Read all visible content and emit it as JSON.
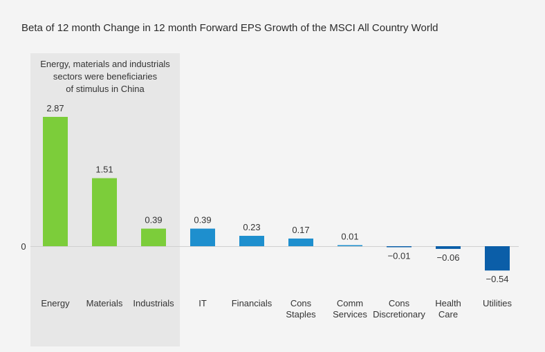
{
  "chart_data": {
    "type": "bar",
    "title": "Beta of 12 month Change in 12 month Forward EPS Growth of the MSCI All Country World",
    "xlabel": "",
    "ylabel": "",
    "ylim": [
      -0.54,
      2.87
    ],
    "zero_label": "0",
    "grid": false,
    "categories": [
      [
        "Energy"
      ],
      [
        "Materials"
      ],
      [
        "Industrials"
      ],
      [
        "IT"
      ],
      [
        "Financials"
      ],
      [
        "Cons",
        "Staples"
      ],
      [
        "Comm",
        "Services"
      ],
      [
        "Cons",
        "Discretionary"
      ],
      [
        "Health",
        "Care"
      ],
      [
        "Utilities"
      ]
    ],
    "values": [
      2.87,
      1.51,
      0.39,
      0.39,
      0.23,
      0.17,
      0.01,
      -0.01,
      -0.06,
      -0.54
    ],
    "value_labels": [
      "2.87",
      "1.51",
      "0.39",
      "0.39",
      "0.23",
      "0.17",
      "0.01",
      "−0.01",
      "−0.06",
      "−0.54"
    ],
    "highlight": {
      "categories": [
        "Energy",
        "Materials",
        "Industrials"
      ],
      "annotation": [
        "Energy, materials and industrials",
        "sectors were beneficiaries",
        "of stimulus in China"
      ],
      "color": "#7ccd3a"
    },
    "colors": {
      "highlight_bar": "#7ccd3a",
      "positive_bar": "#1e8fce",
      "negative_bar": "#0b5ea8",
      "highlight_band": "#e7e7e7",
      "axis": "#cfcfcf",
      "text": "#333333"
    }
  }
}
